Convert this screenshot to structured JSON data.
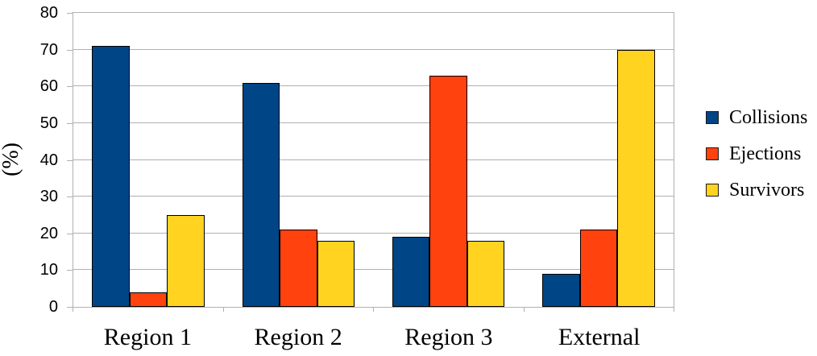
{
  "chart_data": {
    "type": "bar",
    "categories": [
      "Region 1",
      "Region 2",
      "Region 3",
      "External"
    ],
    "series": [
      {
        "name": "Collisions",
        "color": "#004586",
        "values": [
          71,
          61,
          19,
          9
        ]
      },
      {
        "name": "Ejections",
        "color": "#FF420E",
        "values": [
          4,
          21,
          63,
          21
        ]
      },
      {
        "name": "Survivors",
        "color": "#FFD320",
        "values": [
          25,
          18,
          18,
          70
        ]
      }
    ],
    "ylabel": "(%)",
    "ylim": [
      0,
      80
    ],
    "yticks": [
      0,
      10,
      20,
      30,
      40,
      50,
      60,
      70,
      80
    ],
    "grid": "horizontal",
    "legend_position": "right",
    "colors": {
      "axis": "#b0b0b0",
      "grid": "#b0b0b0",
      "bar_border": "#000000",
      "text": "#000000",
      "background": "#ffffff"
    }
  }
}
